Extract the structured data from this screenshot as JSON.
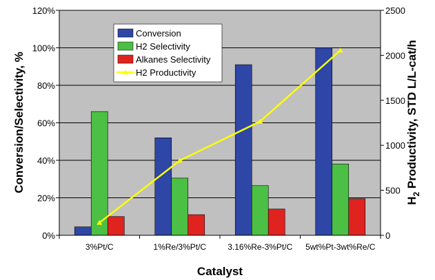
{
  "chart_data": {
    "type": "bar",
    "categories": [
      "3%Pt/C",
      "1%Re/3%Pt/C",
      "3.16%Re-3%Pt/C",
      "5wt%Pt-3wt%Re/C"
    ],
    "series": [
      {
        "name": "Conversion",
        "axis": "left",
        "kind": "bar",
        "color": "#2e46a6",
        "values": [
          4.5,
          52,
          91,
          100
        ]
      },
      {
        "name": "H2 Selectivity",
        "axis": "left",
        "kind": "bar",
        "color": "#4cbf45",
        "values": [
          66,
          30.5,
          26.5,
          38
        ]
      },
      {
        "name": "Alkanes Selectivity",
        "axis": "left",
        "kind": "bar",
        "color": "#e0231f",
        "values": [
          10,
          11,
          14,
          19.5
        ]
      },
      {
        "name": "H2 Productivity",
        "axis": "right",
        "kind": "line",
        "color": "#ffff00",
        "values": [
          140,
          830,
          1265,
          2055
        ]
      }
    ],
    "xlabel": "Catalyst",
    "ylabel": "Conversion/Selectivity, %",
    "y2label_parts": {
      "pre": "H",
      "sub": "2",
      "post": " Productivity, STD L/L-cat/h"
    },
    "ylim": [
      0,
      120
    ],
    "y2lim": [
      0,
      2500
    ],
    "yticks": [
      "0%",
      "20%",
      "40%",
      "60%",
      "80%",
      "100%",
      "120%"
    ],
    "y2ticks": [
      "0",
      "500",
      "1000",
      "1500",
      "2000",
      "2500"
    ],
    "grid": true,
    "legend_position": "top-left"
  }
}
